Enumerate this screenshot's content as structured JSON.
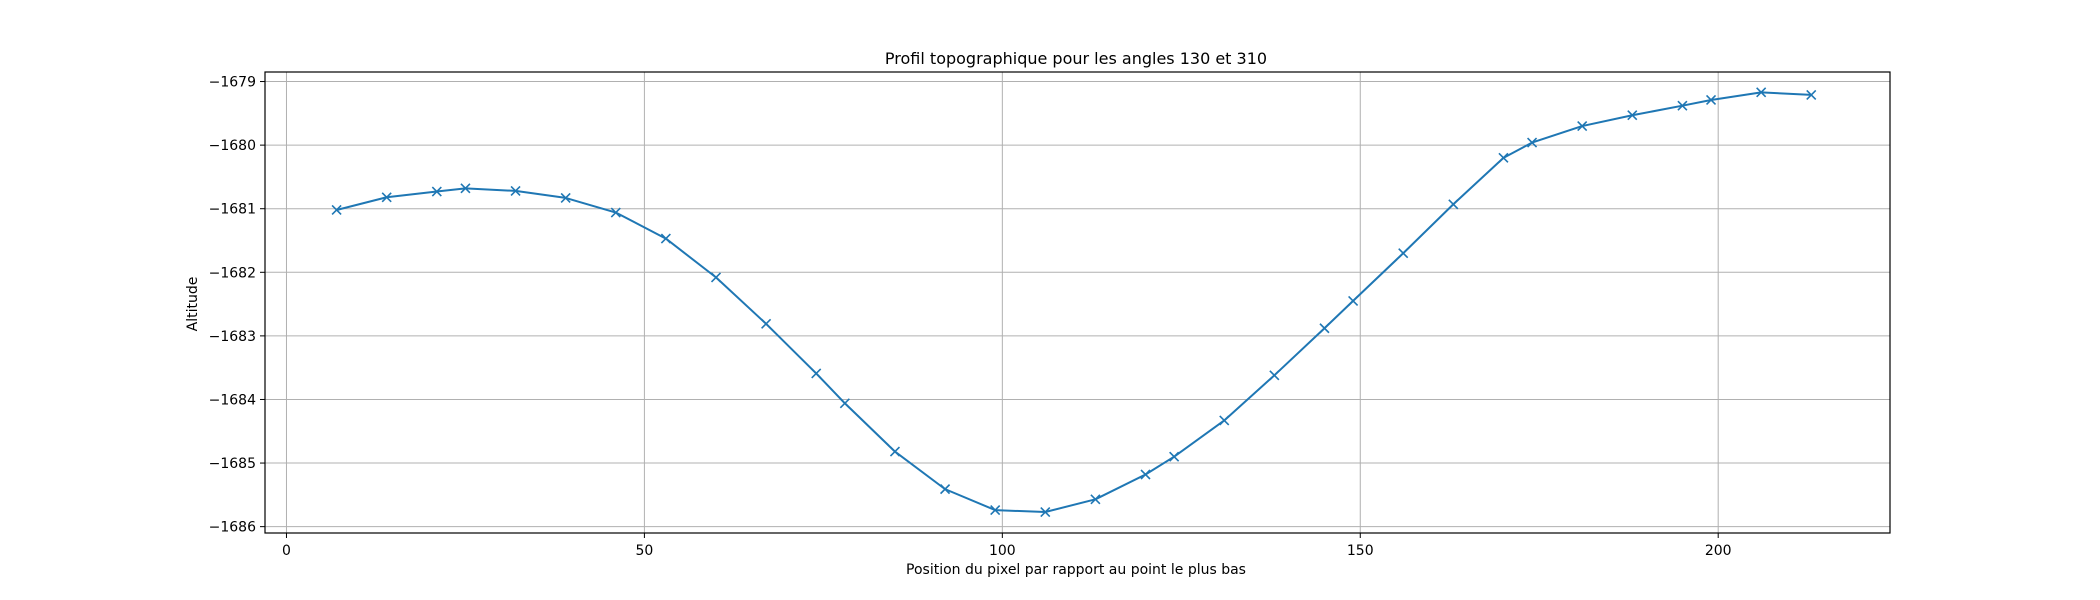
{
  "chart_data": {
    "type": "line",
    "title": "Profil topographique pour les angles 130 et 310",
    "xlabel": "Position du pixel par rapport au point le plus bas",
    "ylabel": "Altitude",
    "xlim": [
      -3,
      224
    ],
    "ylim": [
      -1686.1,
      -1678.85
    ],
    "xticks": [
      0,
      50,
      100,
      150,
      200
    ],
    "yticks": [
      -1686,
      -1685,
      -1684,
      -1683,
      -1682,
      -1681,
      -1680,
      -1679
    ],
    "grid": true,
    "marker": "x",
    "series": [
      {
        "color": "#1f77b4",
        "x": [
          7,
          14,
          21,
          25,
          32,
          39,
          46,
          53,
          60,
          67,
          74,
          78,
          85,
          92,
          99,
          106,
          113,
          120,
          124,
          131,
          138,
          145,
          149,
          156,
          163,
          170,
          174,
          181,
          188,
          195,
          199,
          206,
          213
        ],
        "y": [
          -1681.02,
          -1680.82,
          -1680.73,
          -1680.68,
          -1680.72,
          -1680.83,
          -1681.06,
          -1681.47,
          -1682.08,
          -1682.81,
          -1683.59,
          -1684.06,
          -1684.82,
          -1685.41,
          -1685.74,
          -1685.77,
          -1685.57,
          -1685.18,
          -1684.9,
          -1684.33,
          -1683.62,
          -1682.88,
          -1682.45,
          -1681.7,
          -1680.93,
          -1680.2,
          -1679.96,
          -1679.7,
          -1679.53,
          -1679.38,
          -1679.29,
          -1679.17,
          -1679.21
        ]
      }
    ]
  }
}
